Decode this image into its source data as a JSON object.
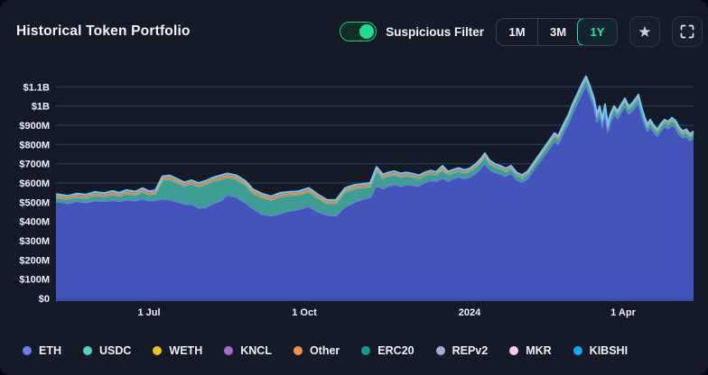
{
  "header": {
    "title": "Historical Token Portfolio",
    "suspicious_filter": {
      "label": "Suspicious Filter",
      "enabled": true
    },
    "range_buttons": [
      {
        "label": "1M",
        "active": false
      },
      {
        "label": "3M",
        "active": false
      },
      {
        "label": "1Y",
        "active": true
      }
    ],
    "icons": {
      "favorite": "star-icon",
      "fullscreen": "fullscreen-icon"
    },
    "accent_green": "#2be3a4",
    "toggle_green": "#17d186"
  },
  "chart_data": {
    "type": "area",
    "stacked": true,
    "title": "Historical Token Portfolio",
    "unit": "USD",
    "grid": true,
    "legend_position": "bottom",
    "background": "#141b27",
    "grid_color": "#27485f",
    "baseline_color": "#3d4ba6",
    "top_line_color": "#7cc1f7",
    "y_axis": {
      "max_m": 1200,
      "ticks": [
        {
          "label": "$0",
          "value_m": 0
        },
        {
          "label": "$100M",
          "value_m": 100
        },
        {
          "label": "$200M",
          "value_m": 200
        },
        {
          "label": "$300M",
          "value_m": 300
        },
        {
          "label": "$400M",
          "value_m": 400
        },
        {
          "label": "$500M",
          "value_m": 500
        },
        {
          "label": "$600M",
          "value_m": 600
        },
        {
          "label": "$700M",
          "value_m": 700
        },
        {
          "label": "$800M",
          "value_m": 800
        },
        {
          "label": "$900M",
          "value_m": 900
        },
        {
          "label": "$1B",
          "value_m": 1000
        },
        {
          "label": "$1.1B",
          "value_m": 1100
        }
      ]
    },
    "x_axis": {
      "ticks": [
        {
          "label": "1 Jul",
          "t": 0.1459
        },
        {
          "label": "1 Oct",
          "t": 0.3895
        },
        {
          "label": "2024",
          "t": 0.6487
        },
        {
          "label": "1 Apr",
          "t": 0.8895
        }
      ]
    },
    "samples_t": [
      0,
      0.0184,
      0.0326,
      0.0467,
      0.0609,
      0.0751,
      0.0892,
      0.0992,
      0.1105,
      0.1246,
      0.136,
      0.1459,
      0.1558,
      0.1671,
      0.1785,
      0.1898,
      0.2011,
      0.2125,
      0.2238,
      0.2351,
      0.2465,
      0.2578,
      0.2691,
      0.2833,
      0.2975,
      0.3088,
      0.3229,
      0.3371,
      0.3513,
      0.3654,
      0.3796,
      0.3966,
      0.4108,
      0.4249,
      0.4391,
      0.4533,
      0.4674,
      0.4816,
      0.4929,
      0.5028,
      0.5127,
      0.5212,
      0.5311,
      0.541,
      0.5495,
      0.5609,
      0.5694,
      0.5779,
      0.5878,
      0.5963,
      0.6062,
      0.6147,
      0.6232,
      0.6317,
      0.6402,
      0.6487,
      0.6586,
      0.6671,
      0.6728,
      0.6799,
      0.6884,
      0.6969,
      0.7054,
      0.7139,
      0.7224,
      0.7309,
      0.7394,
      0.7479,
      0.7564,
      0.7649,
      0.7734,
      0.7819,
      0.7875,
      0.796,
      0.8045,
      0.8102,
      0.8159,
      0.8215,
      0.8272,
      0.8314,
      0.8357,
      0.8399,
      0.8442,
      0.8484,
      0.8527,
      0.8569,
      0.8612,
      0.8654,
      0.8697,
      0.8754,
      0.881,
      0.8867,
      0.8924,
      0.898,
      0.9037,
      0.9093,
      0.9136,
      0.9178,
      0.9235,
      0.9278,
      0.932,
      0.9377,
      0.9433,
      0.949,
      0.9547,
      0.9603,
      0.966,
      0.9717,
      0.9773,
      0.983,
      0.9887,
      0.9943,
      1
    ],
    "series": [
      {
        "name": "ETH",
        "color": "#6b7af5",
        "fill": "#4554ba",
        "edge_stroke": "#6d80f2",
        "edge_width": 1.6,
        "values_m": [
          503,
          494,
          505,
          498,
          508,
          505,
          510,
          505,
          513,
          508,
          518,
          508,
          510,
          518,
          513,
          503,
          491,
          489,
          470,
          473,
          493,
          506,
          538,
          526,
          496,
          468,
          438,
          430,
          440,
          455,
          461,
          479,
          450,
          433,
          430,
          475,
          499,
          515,
          525,
          587,
          570,
          583,
          592,
          583,
          592,
          588,
          584,
          602,
          613,
          607,
          626,
          608,
          623,
          633,
          623,
          630,
          652,
          680,
          703,
          670,
          655,
          647,
          635,
          650,
          617,
          604,
          622,
          661,
          700,
          738,
          777,
          816,
          801,
          860,
          914,
          962,
          1002,
          1041,
          1080,
          1105,
          1072,
          1032,
          990,
          916,
          956,
          892,
          967,
          864,
          918,
          960,
          935,
          970,
          999,
          960,
          974,
          997,
          1017,
          959,
          900,
          867,
          892,
          863,
          844,
          873,
          893,
          882,
          902,
          888,
          854,
          834,
          844,
          820,
          834
        ]
      },
      {
        "name": "USDC",
        "color": "#4fd1c5",
        "fill": "#3f9e93",
        "edge_stroke": "#55cabd",
        "edge_width": 1.2,
        "values_m": [
          20,
          20,
          20,
          22,
          25,
          23,
          28,
          25,
          30,
          28,
          35,
          30,
          32,
          95,
          105,
          98,
          92,
          105,
          110,
          118,
          115,
          112,
          90,
          92,
          92,
          78,
          85,
          80,
          88,
          78,
          75,
          74,
          70,
          60,
          62,
          78,
          70,
          60,
          55,
          75,
          55,
          52,
          50,
          48,
          45,
          42,
          38,
          36,
          35,
          34,
          40,
          35,
          30,
          28,
          28,
          29,
          30,
          31,
          32,
          30,
          28,
          26,
          25,
          24,
          22,
          22,
          22,
          23,
          24,
          25,
          26,
          27,
          27,
          28,
          29,
          30,
          30,
          31,
          32,
          32,
          30,
          30,
          28,
          27,
          27,
          26,
          26,
          24,
          25,
          24,
          24,
          24,
          25,
          24,
          25,
          26,
          26,
          25,
          24,
          22,
          22,
          21,
          20,
          21,
          21,
          22,
          22,
          21,
          20,
          20,
          20,
          19,
          20
        ]
      },
      {
        "name": "WETH",
        "color": "#f0c41e",
        "fill": "#e8bd1f",
        "const_m": 2
      },
      {
        "name": "KNCL",
        "color": "#a868cf",
        "fill": "#a868cf",
        "const_m": 2
      },
      {
        "name": "Other",
        "color": "#f0924a",
        "fill": "#ee8d43",
        "edge_stroke": "#f7a45f",
        "edge_width": 1,
        "values_m": [
          8,
          8,
          8,
          8,
          9,
          8,
          9,
          8,
          9,
          8,
          9,
          8,
          8,
          10,
          10,
          9,
          9,
          9,
          8,
          9,
          9,
          10,
          10,
          10,
          10,
          10,
          10,
          9,
          9,
          9,
          9,
          10,
          9,
          8,
          8,
          9,
          9,
          9,
          9,
          10,
          8,
          8,
          8,
          7,
          6,
          6,
          6,
          5,
          5,
          5,
          12,
          5,
          5,
          5,
          5,
          5,
          6,
          7,
          8,
          6,
          5,
          5,
          4,
          4,
          4,
          4,
          4,
          4,
          4,
          5,
          5,
          5,
          5,
          5,
          5,
          6,
          6,
          6,
          6,
          6,
          6,
          6,
          5,
          5,
          5,
          5,
          5,
          5,
          5,
          4,
          4,
          4,
          4,
          4,
          4,
          5,
          5,
          4,
          4,
          4,
          4,
          4,
          4,
          4,
          4,
          4,
          4,
          4,
          4,
          4,
          4,
          4,
          4
        ]
      },
      {
        "name": "ERC20",
        "color": "#14998b",
        "fill": "#148f82",
        "const_m": 5
      },
      {
        "name": "REPv2",
        "color": "#a4afc9",
        "fill": "#a4afc9",
        "const_m": 1.5
      },
      {
        "name": "MKR",
        "color": "#f8cfe1",
        "fill": "#f8cfe1",
        "const_m": 0.5
      },
      {
        "name": "KIBSHI",
        "color": "#12a9f7",
        "fill": "#12a9f7",
        "const_m": 0.5
      }
    ]
  }
}
